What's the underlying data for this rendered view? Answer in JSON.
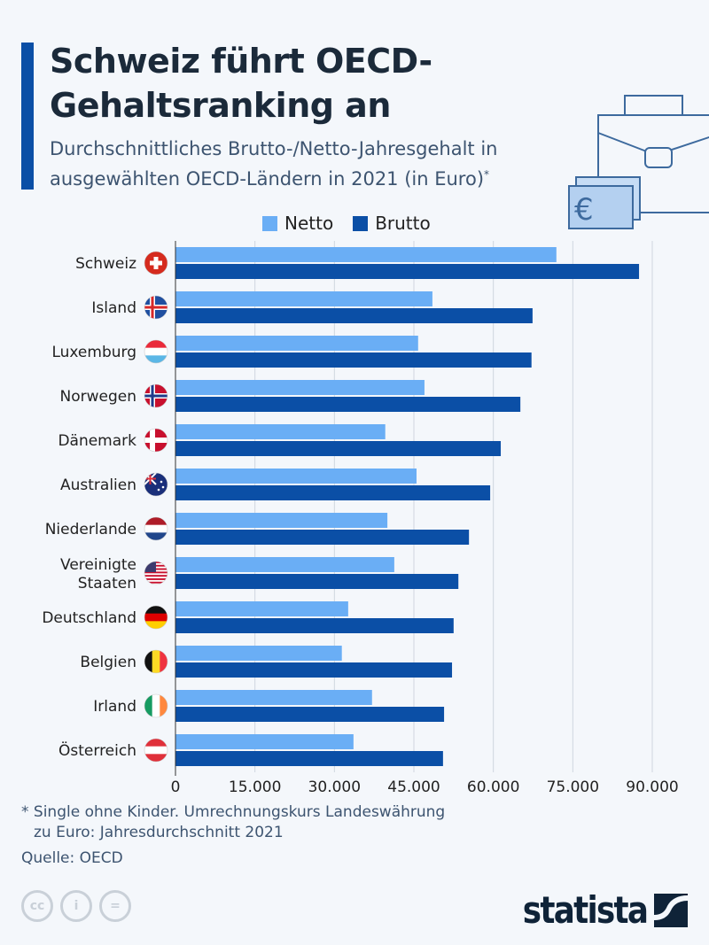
{
  "header": {
    "title_line1": "Schweiz führt OECD-",
    "title_line2": "Gehaltsranking an",
    "subtitle": "Durchschnittliches Brutto-/Netto-Jahresgehalt in ausgewählten OECD-Ländern in 2021 (in Euro)",
    "subtitle_mark": "*"
  },
  "chart_data": {
    "type": "bar",
    "orientation": "horizontal",
    "categories": [
      "Schweiz",
      "Island",
      "Luxemburg",
      "Norwegen",
      "Dänemark",
      "Australien",
      "Niederlande",
      "Vereinigte Staaten",
      "Deutschland",
      "Belgien",
      "Irland",
      "Österreich"
    ],
    "flags": [
      "swiss-flag-icon",
      "iceland-flag-icon",
      "luxembourg-flag-icon",
      "norway-flag-icon",
      "denmark-flag-icon",
      "australia-flag-icon",
      "netherlands-flag-icon",
      "usa-flag-icon",
      "germany-flag-icon",
      "belgium-flag-icon",
      "ireland-flag-icon",
      "austria-flag-icon"
    ],
    "series": [
      {
        "name": "Netto",
        "color": "#6aaef5",
        "values": [
          71900,
          48500,
          45800,
          47000,
          39600,
          45500,
          40000,
          41300,
          32600,
          31400,
          37100,
          33600
        ]
      },
      {
        "name": "Brutto",
        "color": "#0b4fa6",
        "values": [
          87500,
          67400,
          67200,
          65100,
          61400,
          59400,
          55400,
          53400,
          52500,
          52200,
          50700,
          50500
        ]
      }
    ],
    "xlim": [
      0,
      90000
    ],
    "ticks": [
      "0",
      "15.000",
      "30.000",
      "45.000",
      "60.000",
      "75.000",
      "90.000"
    ],
    "tick_values": [
      0,
      15000,
      30000,
      45000,
      60000,
      75000,
      90000
    ],
    "grid": true,
    "legend": "top"
  },
  "footer": {
    "note_line1": "* Single ohne Kinder. Umrechnungskurs Landeswährung",
    "note_line2": "zu Euro: Jahresdurchschnitt 2021",
    "source": "Quelle: OECD",
    "brand": "statista"
  }
}
